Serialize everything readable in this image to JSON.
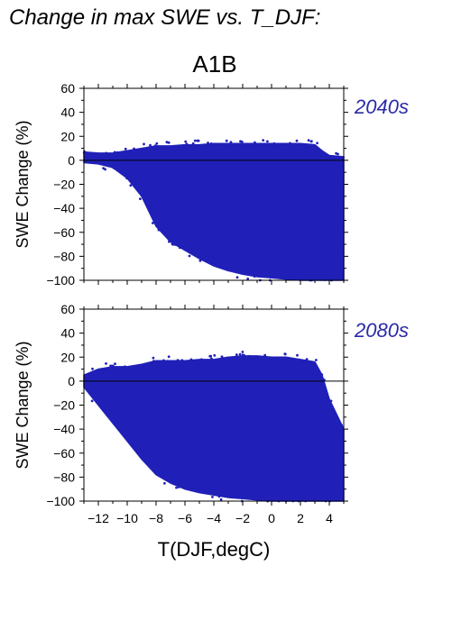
{
  "figure_title": "Change in max SWE vs. T_DJF:",
  "chart_data": {
    "type": "scatter",
    "scenario": "A1B",
    "xlabel": "T(DJF,degC)",
    "ylabel": "SWE Change (%)",
    "xlim": [
      -13,
      5
    ],
    "ylim": [
      -100,
      60
    ],
    "x_ticks": [
      -12,
      -10,
      -8,
      -6,
      -4,
      -2,
      0,
      2,
      4
    ],
    "y_ticks": [
      -100,
      -80,
      -60,
      -40,
      -20,
      0,
      20,
      40,
      60
    ],
    "point_color": "#2020b8",
    "panels": [
      {
        "period": "2040s",
        "envelope": [
          [
            -13.0,
            -2,
            7
          ],
          [
            -12.0,
            -3,
            6
          ],
          [
            -11.0,
            -6,
            6
          ],
          [
            -10.0,
            -15,
            8
          ],
          [
            -9.0,
            -30,
            10
          ],
          [
            -8.0,
            -55,
            12
          ],
          [
            -7.0,
            -68,
            12
          ],
          [
            -6.0,
            -75,
            13
          ],
          [
            -5.0,
            -82,
            13
          ],
          [
            -4.0,
            -88,
            14
          ],
          [
            -3.0,
            -92,
            14
          ],
          [
            -2.0,
            -95,
            14
          ],
          [
            -1.0,
            -97,
            14
          ],
          [
            0.0,
            -98,
            14
          ],
          [
            1.0,
            -99,
            14
          ],
          [
            2.0,
            -100,
            14
          ],
          [
            3.0,
            -100,
            13
          ],
          [
            3.5,
            -100,
            8
          ],
          [
            4.0,
            -100,
            4
          ],
          [
            5.0,
            -100,
            3
          ]
        ]
      },
      {
        "period": "2080s",
        "envelope": [
          [
            -13.0,
            -5,
            5
          ],
          [
            -12.0,
            -20,
            10
          ],
          [
            -11.0,
            -35,
            12
          ],
          [
            -10.0,
            -50,
            12
          ],
          [
            -9.0,
            -65,
            14
          ],
          [
            -8.0,
            -78,
            17
          ],
          [
            -7.0,
            -85,
            17
          ],
          [
            -6.0,
            -90,
            17
          ],
          [
            -5.0,
            -93,
            18
          ],
          [
            -4.0,
            -95,
            18
          ],
          [
            -3.0,
            -97,
            20
          ],
          [
            -2.0,
            -98,
            21
          ],
          [
            -1.0,
            -99,
            21
          ],
          [
            0.0,
            -100,
            20
          ],
          [
            1.0,
            -100,
            20
          ],
          [
            2.0,
            -100,
            18
          ],
          [
            3.0,
            -100,
            16
          ],
          [
            3.5,
            -100,
            5
          ],
          [
            4.0,
            -100,
            -15
          ],
          [
            5.0,
            -100,
            -40
          ]
        ]
      }
    ]
  }
}
